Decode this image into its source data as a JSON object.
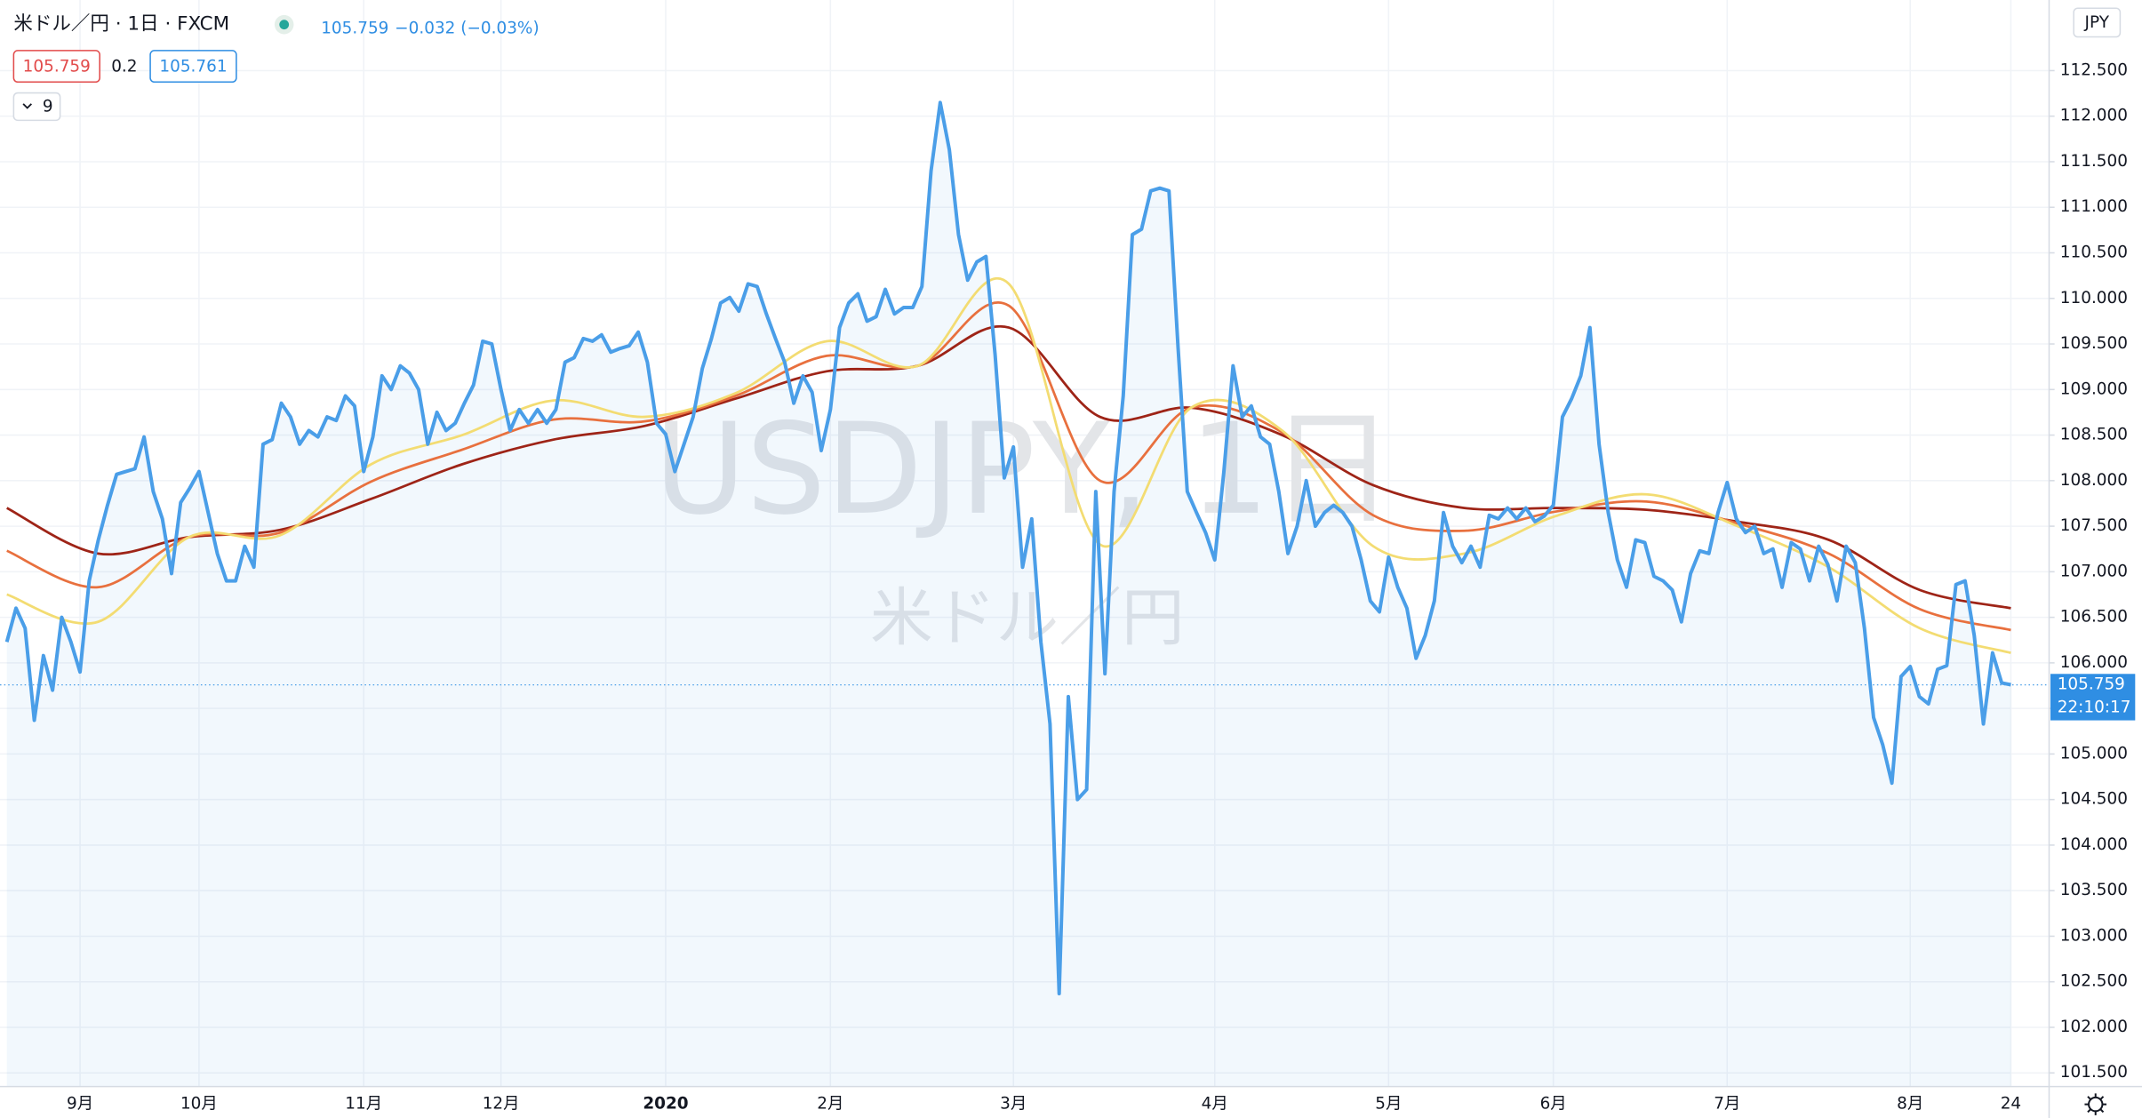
{
  "chart_data": [
    {
      "type": "line",
      "title": "米ドル／円 · 1日 · FXCM",
      "quote": 105.759,
      "change": "−0.032 (−0.03%)",
      "bid": 105.759,
      "spread": 0.2,
      "ask": 105.761,
      "indicator_count": 9,
      "currency": "JPY",
      "watermark": "USDJPY, 1日",
      "watermark_sub": "米ドル／円",
      "last_price": {
        "value": 105.759,
        "label": "105.759"
      },
      "countdown": "22:10:17",
      "grid": true,
      "ylim": [
        101.35,
        113.275
      ],
      "yticks": [
        {
          "value": 101.5,
          "label": "101.500"
        },
        {
          "value": 102,
          "label": "102.000"
        },
        {
          "value": 102.5,
          "label": "102.500"
        },
        {
          "value": 103,
          "label": "103.000"
        },
        {
          "value": 103.5,
          "label": "103.500"
        },
        {
          "value": 104,
          "label": "104.000"
        },
        {
          "value": 104.5,
          "label": "104.500"
        },
        {
          "value": 105,
          "label": "105.000"
        },
        {
          "value": 105.5,
          "label": "105.500"
        },
        {
          "value": 106,
          "label": "106.000"
        },
        {
          "value": 106.5,
          "label": "106.500"
        },
        {
          "value": 107,
          "label": "107.000"
        },
        {
          "value": 107.5,
          "label": "107.500"
        },
        {
          "value": 108,
          "label": "108.000"
        },
        {
          "value": 108.5,
          "label": "108.500"
        },
        {
          "value": 109,
          "label": "109.000"
        },
        {
          "value": 109.5,
          "label": "109.500"
        },
        {
          "value": 110,
          "label": "110.000"
        },
        {
          "value": 110.5,
          "label": "110.500"
        },
        {
          "value": 111,
          "label": "111.000"
        },
        {
          "value": 111.5,
          "label": "111.500"
        },
        {
          "value": 112,
          "label": "112.000"
        },
        {
          "value": 112.5,
          "label": "112.500"
        }
      ],
      "categories": [
        null,
        null,
        null,
        null,
        null,
        null,
        null,
        null,
        "9月",
        null,
        null,
        null,
        null,
        null,
        null,
        null,
        null,
        null,
        null,
        null,
        null,
        "10月",
        null,
        null,
        null,
        null,
        null,
        null,
        null,
        null,
        null,
        null,
        null,
        null,
        null,
        null,
        null,
        null,
        null,
        "11月",
        null,
        null,
        null,
        null,
        null,
        null,
        null,
        null,
        null,
        null,
        null,
        null,
        null,
        null,
        "12月",
        null,
        null,
        null,
        null,
        null,
        null,
        null,
        null,
        null,
        null,
        null,
        null,
        null,
        null,
        null,
        null,
        null,
        "2020",
        null,
        null,
        null,
        null,
        null,
        null,
        null,
        null,
        null,
        null,
        null,
        null,
        null,
        null,
        null,
        null,
        null,
        "2月",
        null,
        null,
        null,
        null,
        null,
        null,
        null,
        null,
        null,
        null,
        null,
        null,
        null,
        null,
        null,
        null,
        null,
        null,
        null,
        "3月",
        null,
        null,
        null,
        null,
        null,
        null,
        null,
        null,
        null,
        null,
        null,
        null,
        null,
        null,
        null,
        null,
        null,
        null,
        null,
        null,
        null,
        "4月",
        null,
        null,
        null,
        null,
        null,
        null,
        null,
        null,
        null,
        null,
        null,
        null,
        null,
        null,
        null,
        null,
        null,
        null,
        "5月",
        null,
        null,
        null,
        null,
        null,
        null,
        null,
        null,
        null,
        null,
        null,
        null,
        null,
        null,
        null,
        null,
        null,
        "6月",
        null,
        null,
        null,
        null,
        null,
        null,
        null,
        null,
        null,
        null,
        null,
        null,
        null,
        null,
        null,
        null,
        null,
        null,
        "7月",
        null,
        null,
        null,
        null,
        null,
        null,
        null,
        null,
        null,
        null,
        null,
        null,
        null,
        null,
        null,
        null,
        null,
        null,
        null,
        "8月",
        null,
        null,
        null,
        null,
        null,
        null,
        null,
        null,
        null,
        null,
        "24"
      ],
      "series": [
        {
          "color": "#4a9ee8",
          "values": [
            106.23,
            106.6,
            106.38,
            105.37,
            106.08,
            105.7,
            106.5,
            106.23,
            105.9,
            106.9,
            107.35,
            107.73,
            108.07,
            108.1,
            108.13,
            108.48,
            107.88,
            107.58,
            106.98,
            107.76,
            107.92,
            108.1,
            107.65,
            107.2,
            106.9,
            106.9,
            107.28,
            107.05,
            108.4,
            108.45,
            108.85,
            108.7,
            108.4,
            108.55,
            108.48,
            108.7,
            108.66,
            108.93,
            108.82,
            108.1,
            108.48,
            109.15,
            109,
            109.26,
            109.18,
            109,
            108.4,
            108.75,
            108.55,
            108.63,
            108.85,
            109.05,
            109.53,
            109.5,
            109,
            108.55,
            108.78,
            108.63,
            108.78,
            108.63,
            108.78,
            109.3,
            109.35,
            109.56,
            109.53,
            109.6,
            109.41,
            109.45,
            109.48,
            109.63,
            109.3,
            108.63,
            108.51,
            108.1,
            108.4,
            108.7,
            109.23,
            109.56,
            109.95,
            110.01,
            109.86,
            110.16,
            110.13,
            109.83,
            109.56,
            109.3,
            108.85,
            109.15,
            108.97,
            108.33,
            108.78,
            109.68,
            109.95,
            110.05,
            109.75,
            109.8,
            110.1,
            109.83,
            109.9,
            109.9,
            110.13,
            111.4,
            112.15,
            111.63,
            110.7,
            110.2,
            110.4,
            110.46,
            109.38,
            108.03,
            108.37,
            107.05,
            107.58,
            106.23,
            105.33,
            102.37,
            105.63,
            104.5,
            104.61,
            107.88,
            105.88,
            107.88,
            108.93,
            110.7,
            110.76,
            111.18,
            111.21,
            111.18,
            109.45,
            107.88,
            107.65,
            107.43,
            107.13,
            108.1,
            109.26,
            108.7,
            108.82,
            108.48,
            108.4,
            107.88,
            107.2,
            107.5,
            108,
            107.5,
            107.65,
            107.73,
            107.65,
            107.5,
            107.13,
            106.68,
            106.56,
            107.16,
            106.83,
            106.6,
            106.05,
            106.3,
            106.68,
            107.65,
            107.28,
            107.1,
            107.28,
            107.05,
            107.62,
            107.58,
            107.7,
            107.58,
            107.7,
            107.55,
            107.61,
            107.73,
            108.7,
            108.9,
            109.15,
            109.68,
            108.4,
            107.65,
            107.13,
            106.83,
            107.35,
            107.32,
            106.95,
            106.9,
            106.8,
            106.45,
            106.98,
            107.23,
            107.2,
            107.65,
            107.98,
            107.58,
            107.43,
            107.5,
            107.2,
            107.25,
            106.83,
            107.32,
            107.25,
            106.9,
            107.28,
            107.08,
            106.68,
            107.28,
            107.1,
            106.38,
            105.4,
            105.1,
            104.68,
            105.85,
            105.96,
            105.63,
            105.55,
            105.93,
            105.97,
            106.86,
            106.9,
            106.3,
            105.33,
            106.11,
            105.78,
            105.76
          ]
        }
      ]
    },
    {
      "type": "ribbon",
      "ylim": [
        101.35,
        113.275
      ],
      "categories": [
        null,
        null,
        null,
        null,
        null,
        null,
        null,
        null,
        null,
        null,
        null,
        null,
        null,
        null,
        null,
        null,
        null,
        null,
        null,
        null,
        null,
        null,
        null
      ],
      "series": [
        {
          "color": "#9e2417",
          "values": [
            107.7,
            107.2,
            107.38,
            107.46,
            107.8,
            108.18,
            108.45,
            108.6,
            108.9,
            109.2,
            109.26,
            109.68,
            108.7,
            108.8,
            108.5,
            107.95,
            107.7,
            107.7,
            107.68,
            107.55,
            107.35,
            106.8,
            106.6
          ]
        },
        {
          "color": "#e8703e",
          "values": [
            107.23,
            106.83,
            107.38,
            107.43,
            107.99,
            108.34,
            108.67,
            108.65,
            108.93,
            109.37,
            109.26,
            109.92,
            108,
            108.8,
            108.53,
            107.62,
            107.45,
            107.66,
            107.77,
            107.53,
            107.2,
            106.59,
            106.36
          ]
        },
        {
          "color": "#f3dc72",
          "values": [
            106.75,
            106.45,
            107.38,
            107.4,
            108.18,
            108.5,
            108.88,
            108.7,
            108.96,
            109.53,
            109.26,
            110.16,
            107.3,
            108.8,
            108.55,
            107.28,
            107.2,
            107.61,
            107.85,
            107.5,
            107.05,
            106.38,
            106.11
          ]
        }
      ]
    }
  ]
}
